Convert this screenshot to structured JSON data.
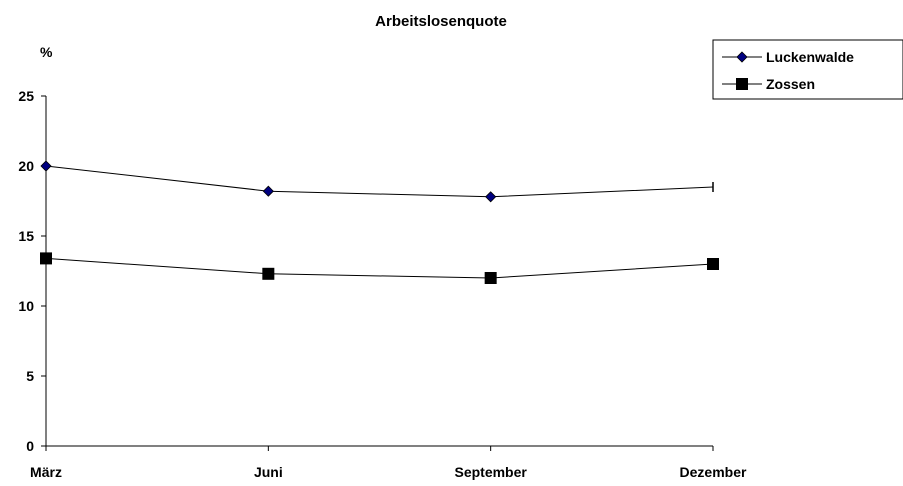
{
  "chart_data": {
    "type": "line",
    "title": "Arbeitslosenquote",
    "ylabel": "%",
    "xlabel": "",
    "categories": [
      "März",
      "Juni",
      "September",
      "Dezember"
    ],
    "ylim": [
      0,
      25
    ],
    "yticks": [
      0,
      5,
      10,
      15,
      20,
      25
    ],
    "grid": false,
    "legend": "top-right",
    "series": [
      {
        "name": "Luckenwalde",
        "values": [
          20.0,
          18.2,
          17.8,
          18.5
        ],
        "marker": "diamond",
        "color": "#000080"
      },
      {
        "name": "Zossen",
        "values": [
          13.4,
          12.3,
          12.0,
          13.0
        ],
        "marker": "square",
        "color": "#000000"
      }
    ]
  }
}
